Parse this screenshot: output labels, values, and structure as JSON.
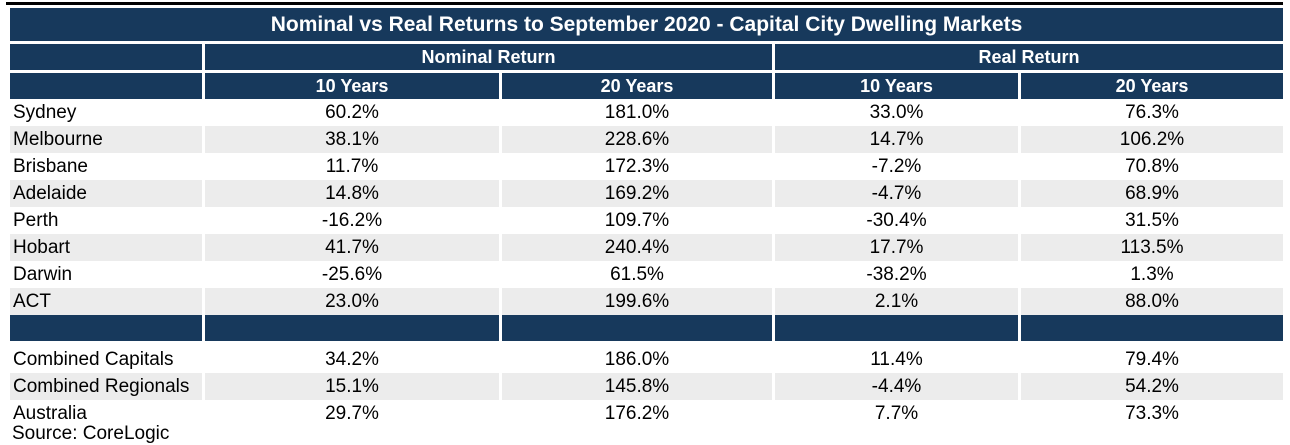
{
  "chart_data": {
    "type": "table",
    "title": "Nominal vs Real Returns to September 2020 - Capital City Dwelling Markets",
    "column_groups": [
      "Nominal Return",
      "Real Return"
    ],
    "sub_columns": [
      "10 Years",
      "20 Years",
      "10 Years",
      "20 Years"
    ],
    "value_unit": "percent",
    "rows": [
      {
        "label": "Sydney",
        "values": [
          "60.2%",
          "181.0%",
          "33.0%",
          "76.3%"
        ]
      },
      {
        "label": "Melbourne",
        "values": [
          "38.1%",
          "228.6%",
          "14.7%",
          "106.2%"
        ]
      },
      {
        "label": "Brisbane",
        "values": [
          "11.7%",
          "172.3%",
          "-7.2%",
          "70.8%"
        ]
      },
      {
        "label": "Adelaide",
        "values": [
          "14.8%",
          "169.2%",
          "-4.7%",
          "68.9%"
        ]
      },
      {
        "label": "Perth",
        "values": [
          "-16.2%",
          "109.7%",
          "-30.4%",
          "31.5%"
        ]
      },
      {
        "label": "Hobart",
        "values": [
          "41.7%",
          "240.4%",
          "17.7%",
          "113.5%"
        ]
      },
      {
        "label": "Darwin",
        "values": [
          "-25.6%",
          "61.5%",
          "-38.2%",
          "1.3%"
        ]
      },
      {
        "label": "ACT",
        "values": [
          "23.0%",
          "199.6%",
          "2.1%",
          "88.0%"
        ]
      }
    ],
    "summary_rows": [
      {
        "label": "Combined Capitals",
        "values": [
          "34.2%",
          "186.0%",
          "11.4%",
          "79.4%"
        ]
      },
      {
        "label": "Combined Regionals",
        "values": [
          "15.1%",
          "145.8%",
          "-4.4%",
          "54.2%"
        ]
      },
      {
        "label": "Australia",
        "values": [
          "29.7%",
          "176.2%",
          "7.7%",
          "73.3%"
        ]
      }
    ],
    "source_note": "Source: CoreLogic",
    "layout": {
      "header_fill": "#17395C",
      "alt_row_fill": "#ECECEC",
      "header_text": "#FFFFFF",
      "body_text": "#000000",
      "top_rule": "#000000"
    }
  }
}
